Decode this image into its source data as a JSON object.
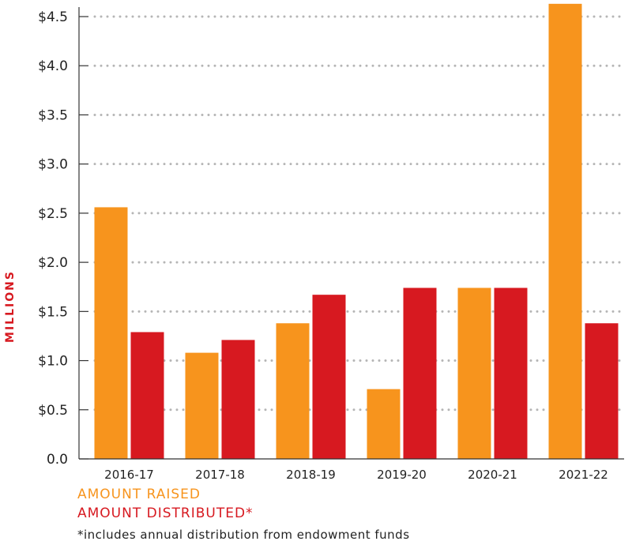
{
  "chart_data": {
    "type": "bar",
    "categories": [
      "2016-17",
      "2017-18",
      "2018-19",
      "2019-20",
      "2020-21",
      "2021-22"
    ],
    "series": [
      {
        "name": "AMOUNT RAISED",
        "color": "#f7941d",
        "values": [
          2.56,
          1.08,
          1.38,
          0.71,
          1.74,
          4.63
        ]
      },
      {
        "name": "AMOUNT DISTRIBUTED*",
        "color": "#d71920",
        "values": [
          1.29,
          1.21,
          1.67,
          1.74,
          1.74,
          1.38
        ]
      }
    ],
    "ylabel": "MILLIONS",
    "ylim": [
      0,
      4.5
    ],
    "yticks": [
      {
        "value": 0,
        "label": "0.0"
      },
      {
        "value": 0.5,
        "label": "$0.5"
      },
      {
        "value": 1.0,
        "label": "$1.0"
      },
      {
        "value": 1.5,
        "label": "$1.5"
      },
      {
        "value": 2.0,
        "label": "$2.0"
      },
      {
        "value": 2.5,
        "label": "$2.5"
      },
      {
        "value": 3.0,
        "label": "$3.0"
      },
      {
        "value": 3.5,
        "label": "$3.5"
      },
      {
        "value": 4.0,
        "label": "$4.0"
      },
      {
        "value": 4.5,
        "label": "$4.5"
      }
    ],
    "grid": "dotted-horizontal",
    "legend_placement": "bottom-left",
    "footnote": "*includes annual distribution from endowment funds"
  }
}
